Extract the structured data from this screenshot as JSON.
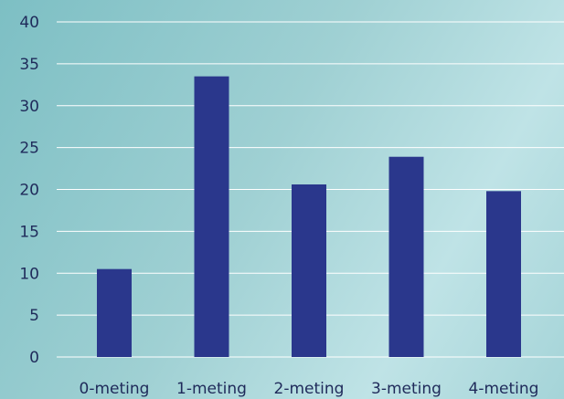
{
  "chart_data": {
    "type": "bar",
    "categories": [
      "0-meting",
      "1-meting",
      "2-meting",
      "3-meting",
      "4-meting"
    ],
    "values": [
      10.5,
      33.5,
      20.6,
      23.9,
      19.8
    ],
    "ylim": [
      0,
      40
    ],
    "yticks": [
      0,
      5,
      10,
      15,
      20,
      25,
      30,
      35,
      40
    ],
    "grid": true,
    "legend": "none",
    "title": "",
    "xlabel": "",
    "ylabel": ""
  },
  "colors": {
    "bar": "#2a378c",
    "grid": "#ffffff",
    "text": "#1f2a5a"
  }
}
